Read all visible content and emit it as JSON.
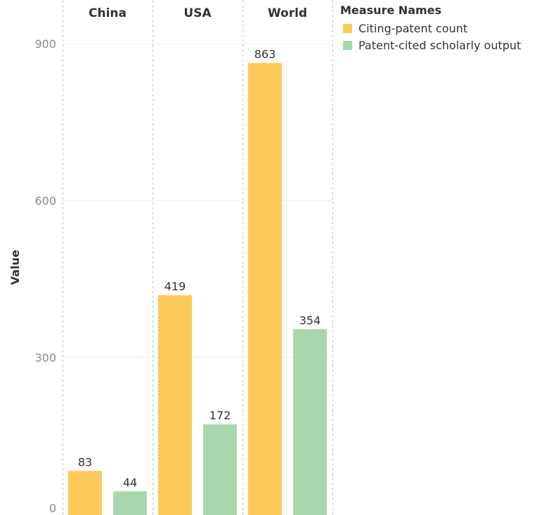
{
  "chart_data": {
    "type": "bar",
    "categories": [
      "China",
      "USA",
      "World"
    ],
    "ylabel": "Value",
    "ylim": [
      0,
      945
    ],
    "yticks": [
      0,
      300,
      600,
      900
    ],
    "grid": true,
    "legend_title": "Measure Names",
    "legend_position": "top-right",
    "series": [
      {
        "name": "Citing-patent count",
        "color": "#fdca5a",
        "values": [
          83,
          419,
          863
        ]
      },
      {
        "name": "Patent-cited scholarly output",
        "color": "#a8d7ae",
        "values": [
          44,
          172,
          354
        ]
      }
    ]
  }
}
